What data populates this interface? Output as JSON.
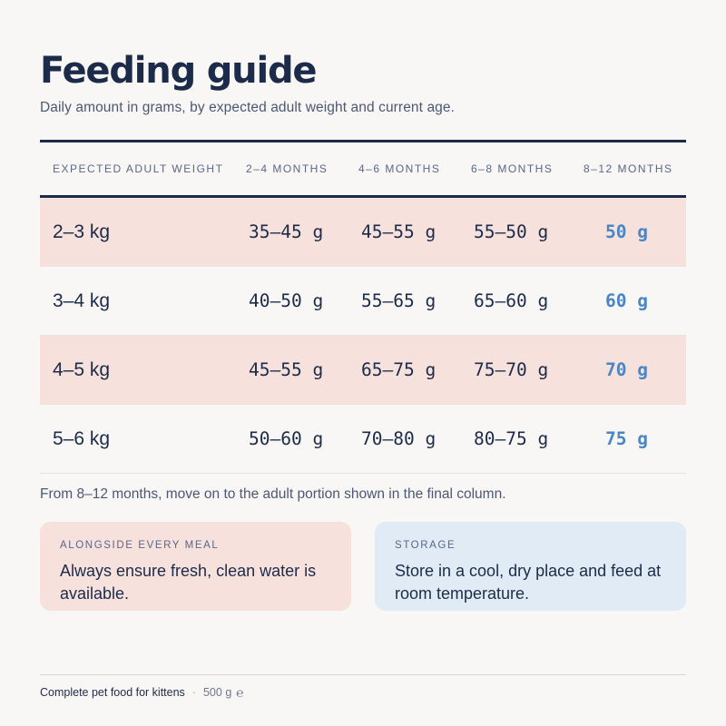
{
  "title": "Feeding guide",
  "subtitle": "Daily amount in grams, by expected adult weight and current age.",
  "table": {
    "headers": [
      "Expected adult weight",
      "2–4 months",
      "4–6 months",
      "6–8 months",
      "8–12 months"
    ],
    "rows": [
      {
        "weight": "2–3 kg",
        "m2_4": "35–45 g",
        "m4_6": "45–55 g",
        "m6_8": "55–50 g",
        "m8_12": "50 g"
      },
      {
        "weight": "3–4 kg",
        "m2_4": "40–50 g",
        "m4_6": "55–65 g",
        "m6_8": "65–60 g",
        "m8_12": "60 g"
      },
      {
        "weight": "4–5 kg",
        "m2_4": "45–55 g",
        "m4_6": "65–75 g",
        "m6_8": "75–70 g",
        "m8_12": "70 g"
      },
      {
        "weight": "5–6 kg",
        "m2_4": "50–60 g",
        "m4_6": "70–80 g",
        "m6_8": "80–75 g",
        "m8_12": "75 g"
      }
    ]
  },
  "note": "From 8–12 months, move on to the adult portion shown in the final column.",
  "cards": {
    "meal": {
      "label": "Alongside every meal",
      "text": "Always ensure fresh, clean water is available."
    },
    "storage": {
      "label": "Storage",
      "text": "Store in a cool, dry place and feed at room temperature."
    }
  },
  "footer": {
    "product": "Complete pet food for kittens",
    "separator": "·",
    "weight": "500 g",
    "estimated_mark": "℮"
  },
  "colors": {
    "ink": "#1c2b4a",
    "accent": "#4a86c6",
    "row_tint": "#f6e1dc",
    "storage_tint": "#e1ebf5"
  }
}
